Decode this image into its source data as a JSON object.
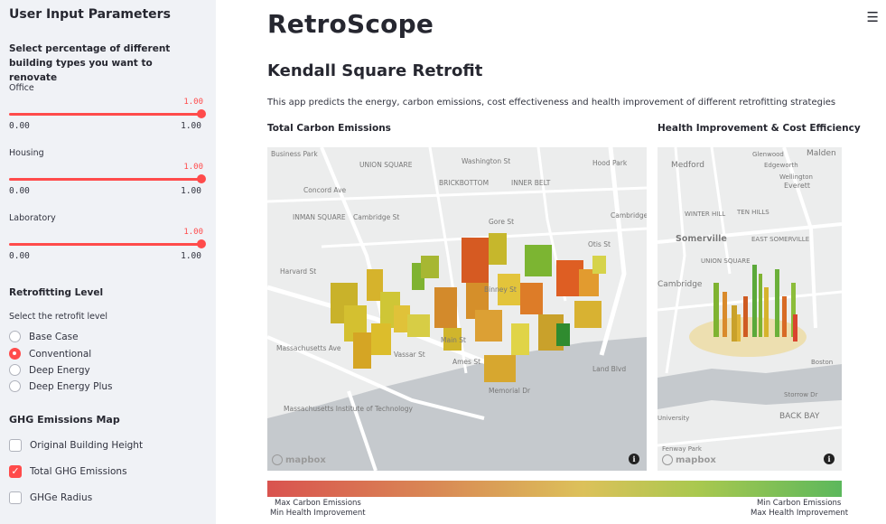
{
  "sidebar": {
    "title": "User Input Parameters",
    "renovate_heading": "Select percentage of different building types you want to renovate",
    "sliders": [
      {
        "label": "Office",
        "value": "1.00",
        "min": "0.00",
        "max": "1.00"
      },
      {
        "label": "Housing",
        "value": "1.00",
        "min": "0.00",
        "max": "1.00"
      },
      {
        "label": "Laboratory",
        "value": "1.00",
        "min": "0.00",
        "max": "1.00"
      }
    ],
    "retrofit_heading": "Retrofitting Level",
    "retrofit_prompt": "Select the retrofit level",
    "retrofit_options": [
      "Base Case",
      "Conventional",
      "Deep Energy",
      "Deep Energy Plus"
    ],
    "retrofit_selected": "Conventional",
    "ghg_heading": "GHG Emissions Map",
    "ghg_options": [
      {
        "label": "Original Building Height",
        "checked": false
      },
      {
        "label": "Total GHG Emissions",
        "checked": true
      },
      {
        "label": "GHGe Radius",
        "checked": false
      }
    ]
  },
  "main": {
    "menu_icon": "hamburger-icon",
    "app_title": "RetroScope",
    "subtitle": "Kendall Square Retrofit",
    "description": "This app predicts the energy, carbon emissions, cost effectiveness and health improvement of different retrofitting strategies",
    "map1_label": "Total Carbon Emissions",
    "map2_label": "Health Improvement & Cost Efficiency",
    "map1_places": [
      "Business Park",
      "UNION SQUARE",
      "Washington St",
      "Hood Park",
      "BRICKBOTTOM",
      "INNER BELT",
      "Concord Ave",
      "INMAN SQUARE",
      "Cambridge St",
      "Gore St",
      "Cambridge Crossing",
      "Otis St",
      "Harvard St",
      "Main St",
      "Vassar St",
      "Massachusetts Ave",
      "Memorial Dr",
      "Ames St",
      "Land Blvd",
      "Massachusetts Institute of Technology",
      "Binney St"
    ],
    "map2_places": [
      "Malden",
      "Medford",
      "Somerville",
      "WINTER HILL",
      "TEN HILLS",
      "EAST SOMERVILLE",
      "UNION SQUARE",
      "Everett",
      "Wellington",
      "Glenwood",
      "Edgeworth",
      "Cambridge",
      "Storrow Dr",
      "BACK BAY",
      "University",
      "Fenway Park",
      "Boston"
    ],
    "mapbox": "mapbox",
    "legend": {
      "left_top": "Max Carbon Emissions",
      "left_bottom": "Min Health Improvement",
      "right_top": "Min Carbon Emissions",
      "right_bottom": "Max Health Improvement"
    },
    "colors": {
      "accent": "#ff4b4b",
      "high": "#d9534f",
      "low": "#5cb85c"
    }
  }
}
